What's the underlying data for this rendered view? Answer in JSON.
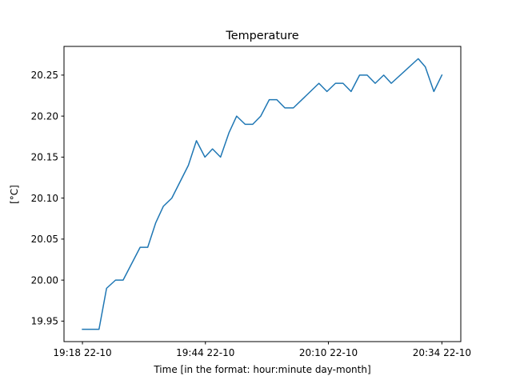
{
  "chart_data": {
    "type": "line",
    "title": "Temperature",
    "xlabel": "Time [in the format: hour:minute   day-month]",
    "ylabel": "[°C]",
    "ylim": [
      19.925,
      20.285
    ],
    "xlim_minutes": [
      -3.9,
      80.0
    ],
    "grid": false,
    "y_ticks": [
      19.95,
      20.0,
      20.05,
      20.1,
      20.15,
      20.2,
      20.25
    ],
    "y_tick_labels": [
      "19.95",
      "20.00",
      "20.05",
      "20.10",
      "20.15",
      "20.20",
      "20.25"
    ],
    "x_ticks": [
      {
        "t": 0,
        "label": "19:18 22-10"
      },
      {
        "t": 26,
        "label": "19:44 22-10"
      },
      {
        "t": 52,
        "label": "20:10 22-10"
      },
      {
        "t": 76,
        "label": "20:34 22-10"
      }
    ],
    "series": [
      {
        "color": "#1f77b4",
        "points": [
          [
            0,
            19.94
          ],
          [
            3.5,
            19.94
          ],
          [
            5.1,
            19.99
          ],
          [
            7.0,
            20.0
          ],
          [
            8.6,
            20.0
          ],
          [
            12.2,
            20.04
          ],
          [
            13.8,
            20.04
          ],
          [
            15.5,
            20.07
          ],
          [
            17.1,
            20.09
          ],
          [
            18.9,
            20.1
          ],
          [
            22.4,
            20.14
          ],
          [
            24.1,
            20.17
          ],
          [
            25.9,
            20.15
          ],
          [
            27.5,
            20.16
          ],
          [
            29.2,
            20.15
          ],
          [
            31.0,
            20.18
          ],
          [
            32.6,
            20.2
          ],
          [
            34.4,
            20.19
          ],
          [
            36.0,
            20.19
          ],
          [
            37.7,
            20.2
          ],
          [
            39.5,
            20.22
          ],
          [
            41.1,
            20.22
          ],
          [
            42.8,
            20.21
          ],
          [
            44.6,
            20.21
          ],
          [
            50.0,
            20.24
          ],
          [
            51.7,
            20.23
          ],
          [
            53.5,
            20.24
          ],
          [
            55.1,
            20.24
          ],
          [
            56.8,
            20.23
          ],
          [
            58.6,
            20.25
          ],
          [
            60.2,
            20.25
          ],
          [
            61.9,
            20.24
          ],
          [
            63.7,
            20.25
          ],
          [
            65.3,
            20.24
          ],
          [
            71.0,
            20.27
          ],
          [
            72.5,
            20.26
          ],
          [
            74.3,
            20.23
          ],
          [
            76.0,
            20.25
          ]
        ]
      }
    ]
  }
}
